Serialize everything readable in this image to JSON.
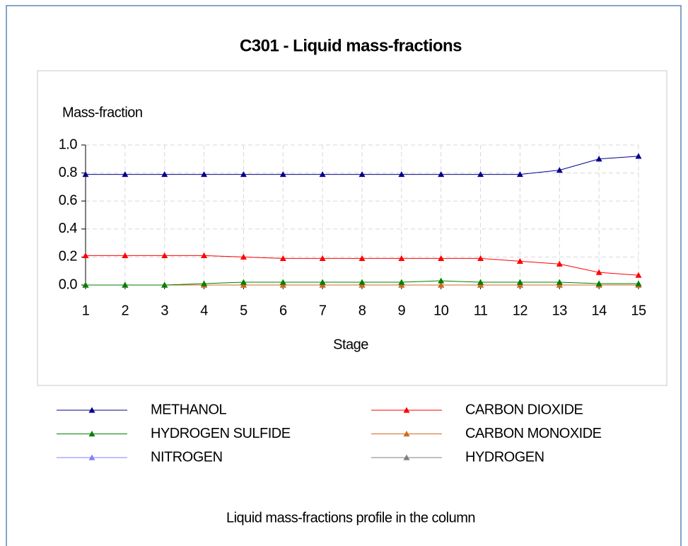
{
  "chart_data": {
    "type": "line",
    "title": "C301 - Liquid mass-fractions",
    "y_label": "Mass-fraction",
    "x_label": "Stage",
    "caption": "Liquid mass-fractions profile in the column",
    "x": [
      1,
      2,
      3,
      4,
      5,
      6,
      7,
      8,
      9,
      10,
      11,
      12,
      13,
      14,
      15
    ],
    "xlim": [
      1,
      15
    ],
    "xticks": [
      1,
      2,
      3,
      4,
      5,
      6,
      7,
      8,
      9,
      10,
      11,
      12,
      13,
      14,
      15
    ],
    "ylim": [
      0,
      1
    ],
    "yticks": [
      {
        "value": 0,
        "label": "0.0"
      },
      0.2,
      0.4,
      0.6,
      0.8,
      {
        "value": 1,
        "label": "1.0"
      }
    ],
    "grid": true,
    "series": [
      {
        "name": "METHANOL",
        "color": "#00008b",
        "values": [
          0.79,
          0.79,
          0.79,
          0.79,
          0.79,
          0.79,
          0.79,
          0.79,
          0.79,
          0.79,
          0.79,
          0.79,
          0.82,
          0.9,
          0.92
        ]
      },
      {
        "name": "CARBON DIOXIDE",
        "color": "#ff0000",
        "values": [
          0.21,
          0.21,
          0.21,
          0.21,
          0.2,
          0.19,
          0.19,
          0.19,
          0.19,
          0.19,
          0.19,
          0.17,
          0.15,
          0.09,
          0.07
        ]
      },
      {
        "name": "HYDROGEN SULFIDE",
        "color": "#008000",
        "values": [
          0,
          0,
          0,
          0.01,
          0.02,
          0.02,
          0.02,
          0.02,
          0.02,
          0.03,
          0.02,
          0.02,
          0.02,
          0.01,
          0.01
        ]
      },
      {
        "name": "CARBON MONOXIDE",
        "color": "#d2691e",
        "values": [
          0,
          0,
          0,
          0,
          0,
          0,
          0,
          0,
          0,
          0,
          0,
          0,
          0,
          0,
          0
        ]
      },
      {
        "name": "NITROGEN",
        "color": "#8080ff",
        "values": [
          0,
          0,
          0,
          0,
          0,
          0,
          0,
          0,
          0,
          0,
          0,
          0,
          0,
          0,
          0
        ]
      },
      {
        "name": "HYDROGEN",
        "color": "#808080",
        "values": [
          0,
          0,
          0,
          0,
          0,
          0,
          0,
          0,
          0,
          0,
          0,
          0,
          0,
          0,
          0
        ]
      }
    ]
  }
}
